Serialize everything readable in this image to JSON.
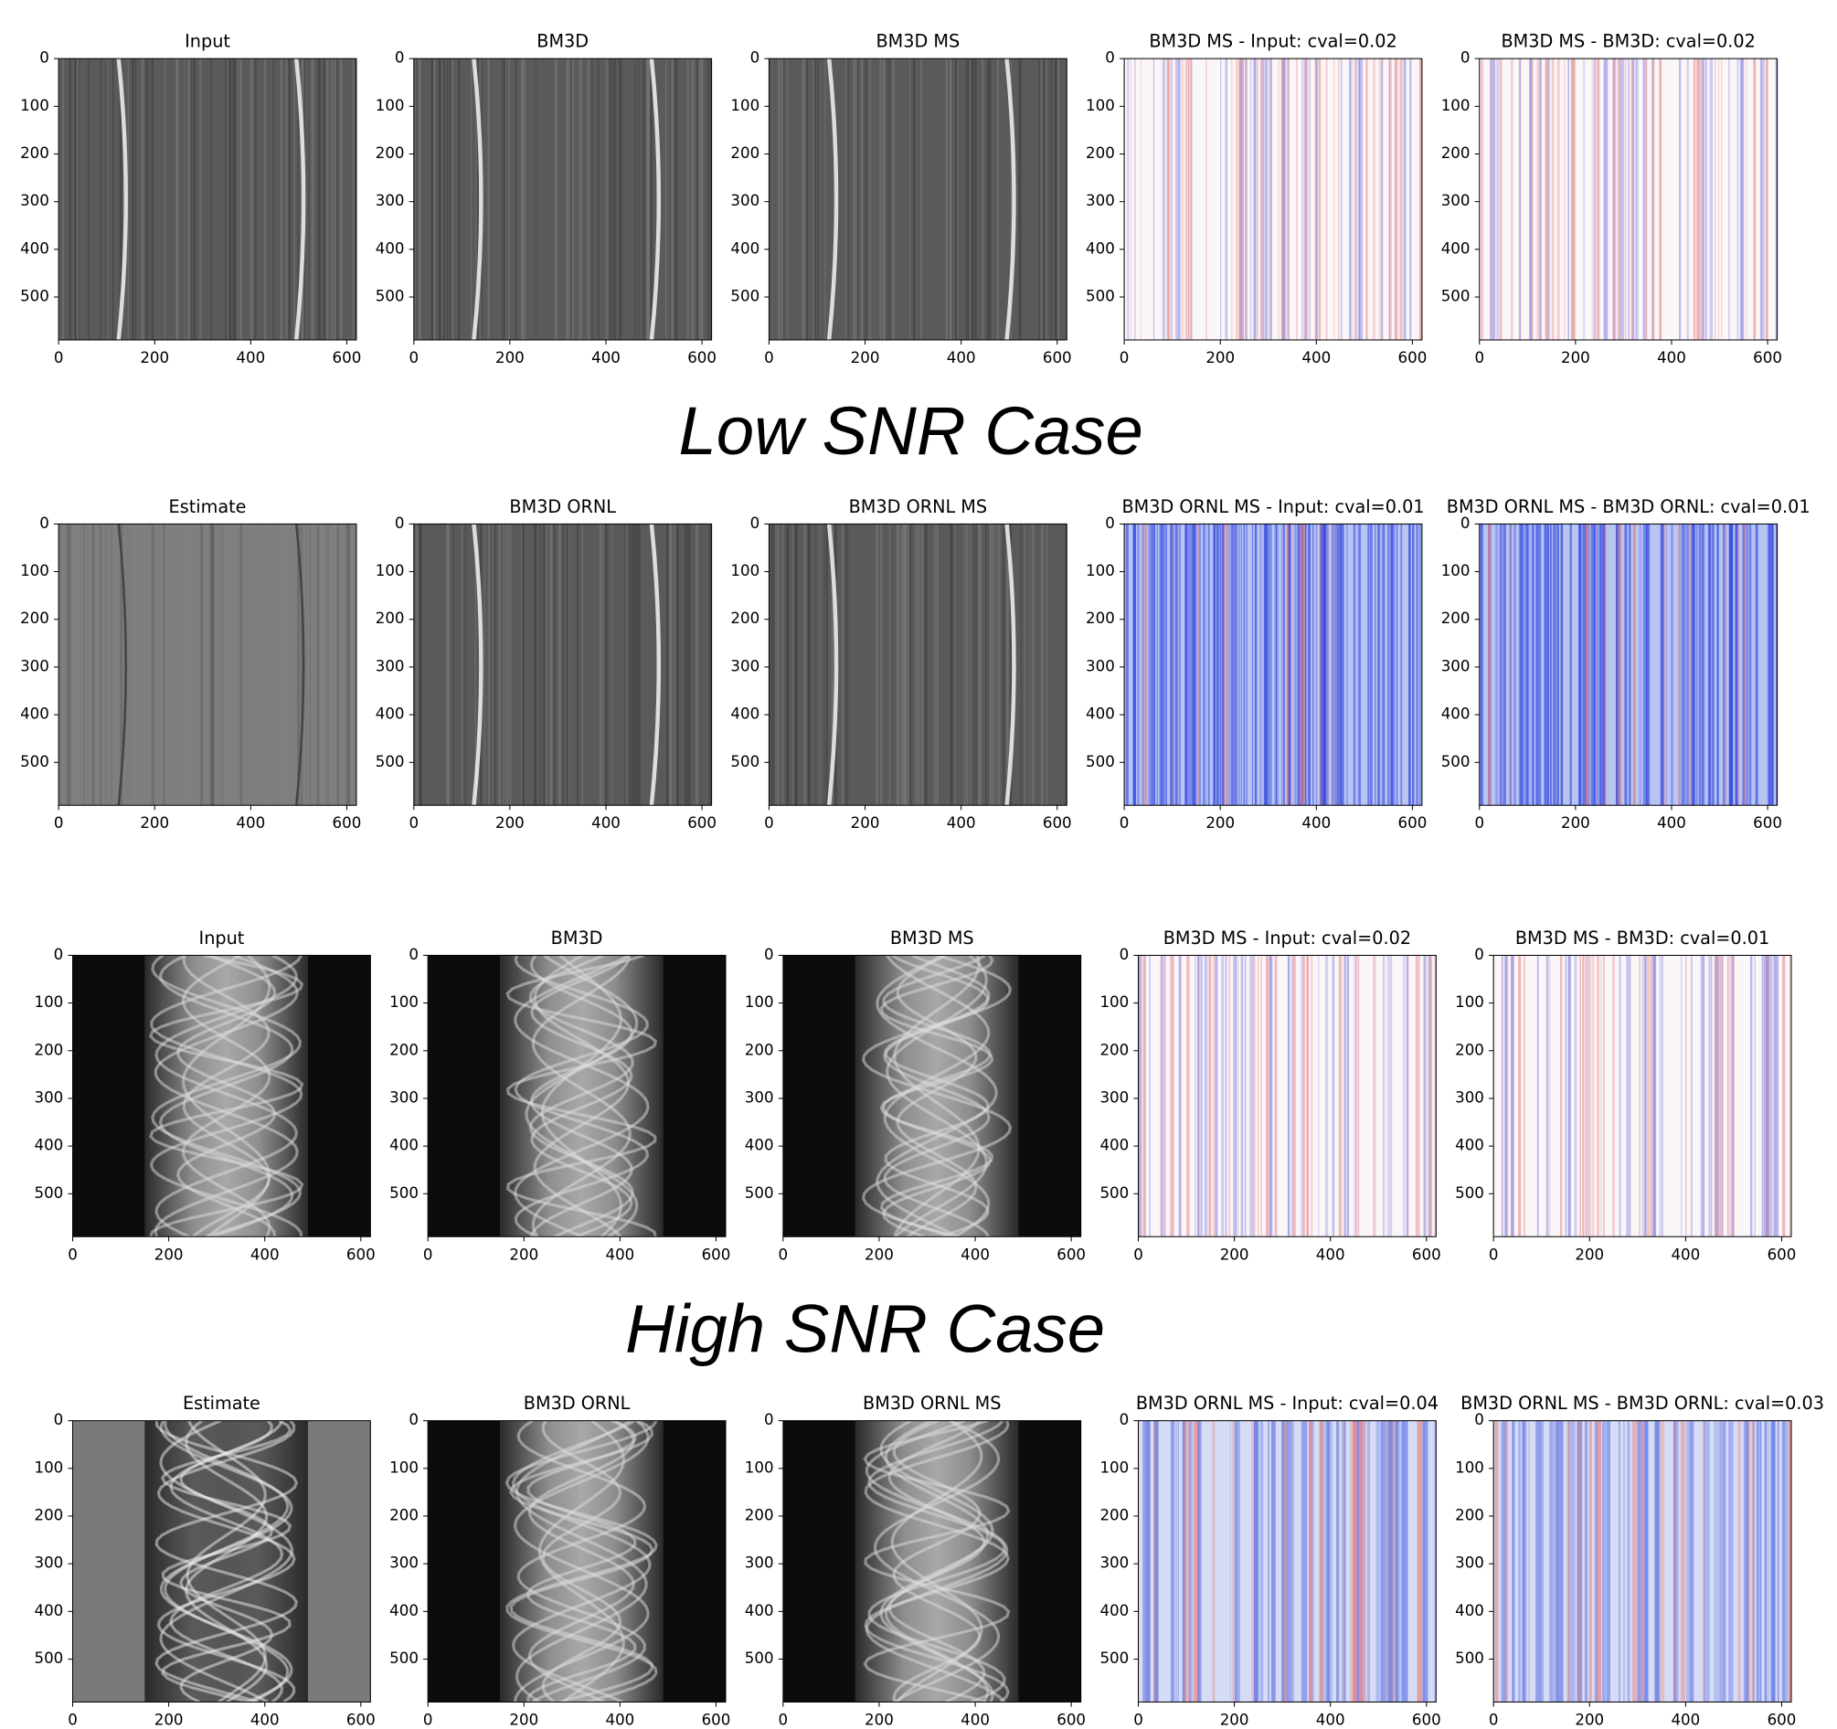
{
  "captions": {
    "low": "Low SNR Case",
    "high": "High SNR Case"
  },
  "chart_data": [
    {
      "type": "image",
      "title": "Input",
      "xlim": [
        0,
        620
      ],
      "ylim": [
        590,
        0
      ],
      "xticks": [
        0,
        200,
        400,
        600
      ],
      "yticks": [
        0,
        100,
        200,
        300,
        400,
        500
      ]
    },
    {
      "type": "image",
      "title": "BM3D",
      "xlim": [
        0,
        620
      ],
      "ylim": [
        590,
        0
      ],
      "xticks": [
        0,
        200,
        400,
        600
      ],
      "yticks": [
        0,
        100,
        200,
        300,
        400,
        500
      ]
    },
    {
      "type": "image",
      "title": "BM3D MS",
      "xlim": [
        0,
        620
      ],
      "ylim": [
        590,
        0
      ],
      "xticks": [
        0,
        200,
        400,
        600
      ],
      "yticks": [
        0,
        100,
        200,
        300,
        400,
        500
      ]
    },
    {
      "type": "image",
      "title": "BM3D MS - Input: cval=0.02",
      "xlim": [
        0,
        620
      ],
      "ylim": [
        590,
        0
      ],
      "xticks": [
        0,
        200,
        400,
        600
      ],
      "yticks": [
        0,
        100,
        200,
        300,
        400,
        500
      ]
    },
    {
      "type": "image",
      "title": "BM3D MS - BM3D: cval=0.02",
      "xlim": [
        0,
        620
      ],
      "ylim": [
        590,
        0
      ],
      "xticks": [
        0,
        200,
        400,
        600
      ],
      "yticks": [
        0,
        100,
        200,
        300,
        400,
        500
      ]
    },
    {
      "type": "image",
      "title": "Estimate",
      "xlim": [
        0,
        620
      ],
      "ylim": [
        590,
        0
      ],
      "xticks": [
        0,
        200,
        400,
        600
      ],
      "yticks": [
        0,
        100,
        200,
        300,
        400,
        500
      ]
    },
    {
      "type": "image",
      "title": "BM3D ORNL",
      "xlim": [
        0,
        620
      ],
      "ylim": [
        590,
        0
      ],
      "xticks": [
        0,
        200,
        400,
        600
      ],
      "yticks": [
        0,
        100,
        200,
        300,
        400,
        500
      ]
    },
    {
      "type": "image",
      "title": "BM3D ORNL MS",
      "xlim": [
        0,
        620
      ],
      "ylim": [
        590,
        0
      ],
      "xticks": [
        0,
        200,
        400,
        600
      ],
      "yticks": [
        0,
        100,
        200,
        300,
        400,
        500
      ]
    },
    {
      "type": "image",
      "title": "BM3D ORNL MS - Input: cval=0.01",
      "xlim": [
        0,
        620
      ],
      "ylim": [
        590,
        0
      ],
      "xticks": [
        0,
        200,
        400,
        600
      ],
      "yticks": [
        0,
        100,
        200,
        300,
        400,
        500
      ]
    },
    {
      "type": "image",
      "title": "BM3D ORNL MS - BM3D ORNL: cval=0.01",
      "xlim": [
        0,
        620
      ],
      "ylim": [
        590,
        0
      ],
      "xticks": [
        0,
        200,
        400,
        600
      ],
      "yticks": [
        0,
        100,
        200,
        300,
        400,
        500
      ]
    },
    {
      "type": "image",
      "title": "Input",
      "xlim": [
        0,
        620
      ],
      "ylim": [
        590,
        0
      ],
      "xticks": [
        0,
        200,
        400,
        600
      ],
      "yticks": [
        0,
        100,
        200,
        300,
        400,
        500
      ]
    },
    {
      "type": "image",
      "title": "BM3D",
      "xlim": [
        0,
        620
      ],
      "ylim": [
        590,
        0
      ],
      "xticks": [
        0,
        200,
        400,
        600
      ],
      "yticks": [
        0,
        100,
        200,
        300,
        400,
        500
      ]
    },
    {
      "type": "image",
      "title": "BM3D MS",
      "xlim": [
        0,
        620
      ],
      "ylim": [
        590,
        0
      ],
      "xticks": [
        0,
        200,
        400,
        600
      ],
      "yticks": [
        0,
        100,
        200,
        300,
        400,
        500
      ]
    },
    {
      "type": "image",
      "title": "BM3D MS - Input: cval=0.02",
      "xlim": [
        0,
        620
      ],
      "ylim": [
        590,
        0
      ],
      "xticks": [
        0,
        200,
        400,
        600
      ],
      "yticks": [
        0,
        100,
        200,
        300,
        400,
        500
      ]
    },
    {
      "type": "image",
      "title": "BM3D MS - BM3D: cval=0.01",
      "xlim": [
        0,
        620
      ],
      "ylim": [
        590,
        0
      ],
      "xticks": [
        0,
        200,
        400,
        600
      ],
      "yticks": [
        0,
        100,
        200,
        300,
        400,
        500
      ]
    },
    {
      "type": "image",
      "title": "Estimate",
      "xlim": [
        0,
        620
      ],
      "ylim": [
        590,
        0
      ],
      "xticks": [
        0,
        200,
        400,
        600
      ],
      "yticks": [
        0,
        100,
        200,
        300,
        400,
        500
      ]
    },
    {
      "type": "image",
      "title": "BM3D ORNL",
      "xlim": [
        0,
        620
      ],
      "ylim": [
        590,
        0
      ],
      "xticks": [
        0,
        200,
        400,
        600
      ],
      "yticks": [
        0,
        100,
        200,
        300,
        400,
        500
      ]
    },
    {
      "type": "image",
      "title": "BM3D ORNL MS",
      "xlim": [
        0,
        620
      ],
      "ylim": [
        590,
        0
      ],
      "xticks": [
        0,
        200,
        400,
        600
      ],
      "yticks": [
        0,
        100,
        200,
        300,
        400,
        500
      ]
    },
    {
      "type": "image",
      "title": "BM3D ORNL MS - Input: cval=0.04",
      "xlim": [
        0,
        620
      ],
      "ylim": [
        590,
        0
      ],
      "xticks": [
        0,
        200,
        400,
        600
      ],
      "yticks": [
        0,
        100,
        200,
        300,
        400,
        500
      ]
    },
    {
      "type": "image",
      "title": "BM3D ORNL MS - BM3D ORNL: cval=0.03",
      "xlim": [
        0,
        620
      ],
      "ylim": [
        590,
        0
      ],
      "xticks": [
        0,
        200,
        400,
        600
      ],
      "yticks": [
        0,
        100,
        200,
        300,
        400,
        500
      ]
    }
  ]
}
